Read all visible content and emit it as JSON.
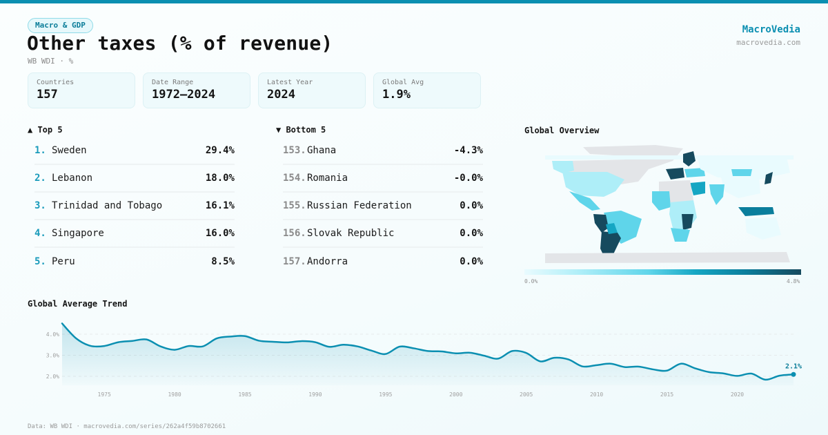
{
  "header": {
    "category_badge": "Macro & GDP",
    "title": "Other taxes (% of revenue)",
    "subtitle": "WB WDI · %",
    "brand_name": "MacroVedia",
    "brand_url": "macrovedia.com"
  },
  "stats": [
    {
      "label": "Countries",
      "value": "157"
    },
    {
      "label": "Date Range",
      "value": "1972–2024"
    },
    {
      "label": "Latest Year",
      "value": "2024"
    },
    {
      "label": "Global Avg",
      "value": "1.9%"
    }
  ],
  "top5": {
    "heading": "▲ Top 5",
    "items": [
      {
        "rank": "1.",
        "name": "Sweden",
        "value": "29.4%"
      },
      {
        "rank": "2.",
        "name": "Lebanon",
        "value": "18.0%"
      },
      {
        "rank": "3.",
        "name": "Trinidad and Tobago",
        "value": "16.1%"
      },
      {
        "rank": "4.",
        "name": "Singapore",
        "value": "16.0%"
      },
      {
        "rank": "5.",
        "name": "Peru",
        "value": "8.5%"
      }
    ]
  },
  "bottom5": {
    "heading": "▼ Bottom 5",
    "items": [
      {
        "rank": "153.",
        "name": "Ghana",
        "value": "-4.3%"
      },
      {
        "rank": "154.",
        "name": "Romania",
        "value": "-0.0%"
      },
      {
        "rank": "155.",
        "name": "Russian Federation",
        "value": "0.0%"
      },
      {
        "rank": "156.",
        "name": "Slovak Republic",
        "value": "0.0%"
      },
      {
        "rank": "157.",
        "name": "Andorra",
        "value": "0.0%"
      }
    ]
  },
  "map": {
    "title": "Global Overview",
    "legend_min": "0.0%",
    "legend_max": "4.8%",
    "colors": {
      "no_data": "#e3e5e8",
      "low": "#e9fbfe",
      "mid_low": "#aeeef8",
      "mid": "#5fd5ea",
      "mid_high": "#16a6c3",
      "high": "#0b7e9c",
      "max": "#164a5e"
    }
  },
  "trend": {
    "title": "Global Average Trend",
    "end_label": "2.1%"
  },
  "chart_data": {
    "type": "area",
    "title": "Global Average Trend",
    "xlabel": "",
    "ylabel": "",
    "x": [
      1972,
      1973,
      1974,
      1975,
      1976,
      1977,
      1978,
      1979,
      1980,
      1981,
      1982,
      1983,
      1984,
      1985,
      1986,
      1987,
      1988,
      1989,
      1990,
      1991,
      1992,
      1993,
      1994,
      1995,
      1996,
      1997,
      1998,
      1999,
      2000,
      2001,
      2002,
      2003,
      2004,
      2005,
      2006,
      2007,
      2008,
      2009,
      2010,
      2011,
      2012,
      2013,
      2014,
      2015,
      2016,
      2017,
      2018,
      2019,
      2020,
      2021,
      2022,
      2023,
      2024
    ],
    "series": [
      {
        "name": "Global Average",
        "values": [
          4.51,
          3.8,
          3.45,
          3.44,
          3.62,
          3.68,
          3.75,
          3.42,
          3.26,
          3.44,
          3.42,
          3.8,
          3.89,
          3.91,
          3.69,
          3.64,
          3.61,
          3.67,
          3.62,
          3.4,
          3.5,
          3.42,
          3.22,
          3.06,
          3.41,
          3.33,
          3.2,
          3.18,
          3.09,
          3.12,
          2.98,
          2.84,
          3.2,
          3.11,
          2.71,
          2.88,
          2.8,
          2.47,
          2.53,
          2.6,
          2.44,
          2.46,
          2.33,
          2.27,
          2.6,
          2.38,
          2.2,
          2.14,
          2.02,
          2.13,
          1.84,
          2.03,
          2.09
        ]
      }
    ],
    "xticks": [
      "1975",
      "1980",
      "1985",
      "1990",
      "1995",
      "2000",
      "2005",
      "2010",
      "2015",
      "2020"
    ],
    "yticks": [
      "2.0%",
      "3.0%",
      "4.0%"
    ],
    "ytick_values": [
      2.0,
      3.0,
      4.0
    ],
    "xlim": [
      1972,
      2024
    ],
    "ylim": [
      1.5,
      4.6
    ],
    "grid": true,
    "color": "#0b8fb1"
  },
  "footer": {
    "source": "Data: WB WDI · macrovedia.com/series/262a4f59b8702661"
  }
}
